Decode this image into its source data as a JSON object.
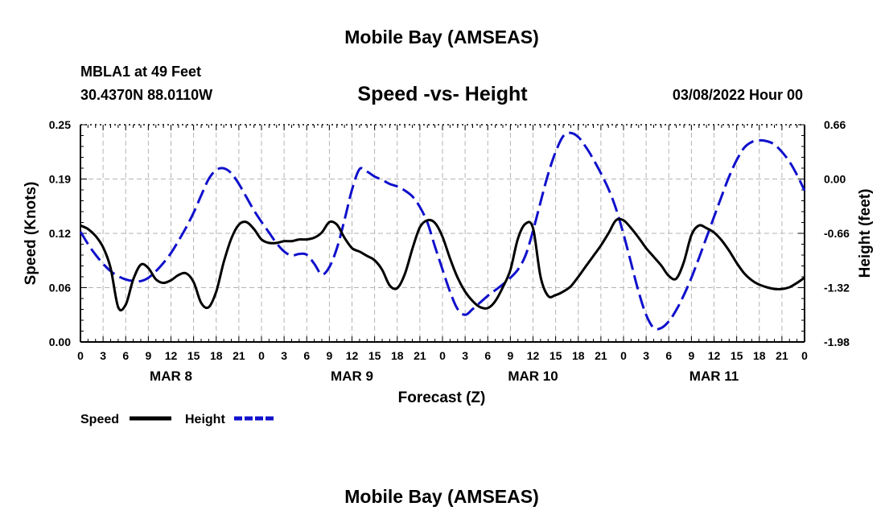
{
  "header": {
    "title": "Mobile Bay (AMSEAS)",
    "station_line": "MBLA1 at 49 Feet",
    "coords_line": "30.4370N  88.0110W",
    "plot_title": "Speed -vs- Height",
    "date_line": "03/08/2022 Hour 00"
  },
  "footer": {
    "repeat_title": "Mobile Bay (AMSEAS)"
  },
  "chart_data": {
    "type": "line",
    "title": "Speed -vs- Height",
    "xlabel": "Forecast (Z)",
    "ylabel_left": "Speed (Knots)",
    "ylabel_right": "Height (feet)",
    "xlim": [
      0,
      96
    ],
    "ylim_left": [
      0,
      0.25
    ],
    "ylim_right": [
      -1.98,
      0.66
    ],
    "y_ticks_left": [
      "0.00",
      "0.06",
      "0.12",
      "0.19",
      "0.25"
    ],
    "y_ticks_left_values": [
      0,
      0.0625,
      0.125,
      0.1875,
      0.25
    ],
    "y_ticks_right": [
      "-1.98",
      "-1.32",
      "-0.66",
      "0.00",
      "0.66"
    ],
    "y_ticks_right_values": [
      -1.98,
      -1.32,
      -0.66,
      0.0,
      0.66
    ],
    "x_tick_labels": [
      "0",
      "3",
      "6",
      "9",
      "12",
      "15",
      "18",
      "21",
      "0",
      "3",
      "6",
      "9",
      "12",
      "15",
      "18",
      "21",
      "0",
      "3",
      "6",
      "9",
      "12",
      "15",
      "18",
      "21",
      "0",
      "3",
      "6",
      "9",
      "12",
      "15",
      "18",
      "21",
      "0"
    ],
    "day_labels": [
      {
        "label": "MAR 8",
        "hour": 12
      },
      {
        "label": "MAR 9",
        "hour": 36
      },
      {
        "label": "MAR 10",
        "hour": 60
      },
      {
        "label": "MAR 11",
        "hour": 84
      }
    ],
    "grid": true,
    "legend": [
      {
        "name": "Speed",
        "color": "#000000",
        "style": "solid"
      },
      {
        "name": "Height",
        "color": "#1010cc",
        "style": "dashed"
      }
    ],
    "series": [
      {
        "name": "Speed",
        "axis": "left",
        "color": "#000000",
        "x": [
          0,
          1,
          2,
          3,
          4,
          5,
          6,
          7,
          8,
          9,
          10,
          11,
          12,
          13,
          14,
          15,
          16,
          17,
          18,
          19,
          20,
          21,
          22,
          23,
          24,
          25,
          26,
          27,
          28,
          29,
          30,
          31,
          32,
          33,
          34,
          35,
          36,
          37,
          38,
          39,
          40,
          41,
          42,
          43,
          44,
          45,
          46,
          47,
          48,
          49,
          50,
          51,
          52,
          53,
          54,
          55,
          56,
          57,
          58,
          59,
          60,
          61,
          62,
          63,
          64,
          65,
          66,
          67,
          68,
          69,
          70,
          71,
          72,
          73,
          74,
          75,
          76,
          77,
          78,
          79,
          80,
          81,
          82,
          83,
          84,
          85,
          86,
          87,
          88,
          89,
          90,
          91,
          92,
          93,
          94,
          95,
          96
        ],
        "values": [
          0.134,
          0.13,
          0.122,
          0.109,
          0.085,
          0.04,
          0.043,
          0.072,
          0.089,
          0.085,
          0.072,
          0.068,
          0.071,
          0.077,
          0.079,
          0.069,
          0.045,
          0.04,
          0.058,
          0.092,
          0.119,
          0.135,
          0.138,
          0.13,
          0.118,
          0.114,
          0.114,
          0.116,
          0.116,
          0.118,
          0.118,
          0.12,
          0.126,
          0.138,
          0.135,
          0.12,
          0.108,
          0.104,
          0.099,
          0.094,
          0.083,
          0.065,
          0.062,
          0.078,
          0.107,
          0.132,
          0.14,
          0.137,
          0.121,
          0.096,
          0.074,
          0.058,
          0.047,
          0.04,
          0.039,
          0.047,
          0.063,
          0.083,
          0.119,
          0.136,
          0.131,
          0.075,
          0.053,
          0.054,
          0.058,
          0.064,
          0.075,
          0.087,
          0.099,
          0.111,
          0.125,
          0.14,
          0.14,
          0.131,
          0.12,
          0.108,
          0.098,
          0.088,
          0.076,
          0.073,
          0.092,
          0.123,
          0.134,
          0.131,
          0.126,
          0.117,
          0.105,
          0.091,
          0.079,
          0.071,
          0.066,
          0.063,
          0.061,
          0.061,
          0.063,
          0.068,
          0.074
        ]
      },
      {
        "name": "Height",
        "axis": "right",
        "color": "#1010cc",
        "x": [
          0,
          1,
          2,
          3,
          4,
          5,
          6,
          7,
          8,
          9,
          10,
          11,
          12,
          13,
          14,
          15,
          16,
          17,
          18,
          19,
          20,
          21,
          22,
          23,
          24,
          25,
          26,
          27,
          28,
          29,
          30,
          31,
          32,
          33,
          34,
          35,
          36,
          37,
          38,
          39,
          40,
          41,
          42,
          43,
          44,
          45,
          46,
          47,
          48,
          49,
          50,
          51,
          52,
          53,
          54,
          55,
          56,
          57,
          58,
          59,
          60,
          61,
          62,
          63,
          64,
          65,
          66,
          67,
          68,
          69,
          70,
          71,
          72,
          73,
          74,
          75,
          76,
          77,
          78,
          79,
          80,
          81,
          82,
          83,
          84,
          85,
          86,
          87,
          88,
          89,
          90,
          91,
          92,
          93,
          94,
          95,
          96
        ],
        "values": [
          -0.64,
          -0.79,
          -0.92,
          -1.03,
          -1.12,
          -1.18,
          -1.22,
          -1.24,
          -1.24,
          -1.2,
          -1.12,
          -1.02,
          -0.9,
          -0.75,
          -0.59,
          -0.41,
          -0.2,
          0.0,
          0.11,
          0.13,
          0.07,
          -0.06,
          -0.22,
          -0.38,
          -0.52,
          -0.65,
          -0.78,
          -0.88,
          -0.93,
          -0.91,
          -0.92,
          -1.03,
          -1.16,
          -1.07,
          -0.84,
          -0.5,
          -0.13,
          0.12,
          0.09,
          0.03,
          -0.01,
          -0.06,
          -0.09,
          -0.14,
          -0.21,
          -0.34,
          -0.53,
          -0.82,
          -1.1,
          -1.37,
          -1.58,
          -1.65,
          -1.58,
          -1.5,
          -1.42,
          -1.35,
          -1.28,
          -1.2,
          -1.1,
          -0.93,
          -0.63,
          -0.28,
          0.06,
          0.33,
          0.52,
          0.56,
          0.51,
          0.39,
          0.24,
          0.07,
          -0.12,
          -0.36,
          -0.67,
          -1.02,
          -1.37,
          -1.65,
          -1.81,
          -1.81,
          -1.73,
          -1.59,
          -1.41,
          -1.2,
          -0.96,
          -0.71,
          -0.46,
          -0.21,
          0.03,
          0.23,
          0.38,
          0.45,
          0.47,
          0.46,
          0.42,
          0.33,
          0.21,
          0.05,
          -0.14
        ]
      }
    ]
  }
}
